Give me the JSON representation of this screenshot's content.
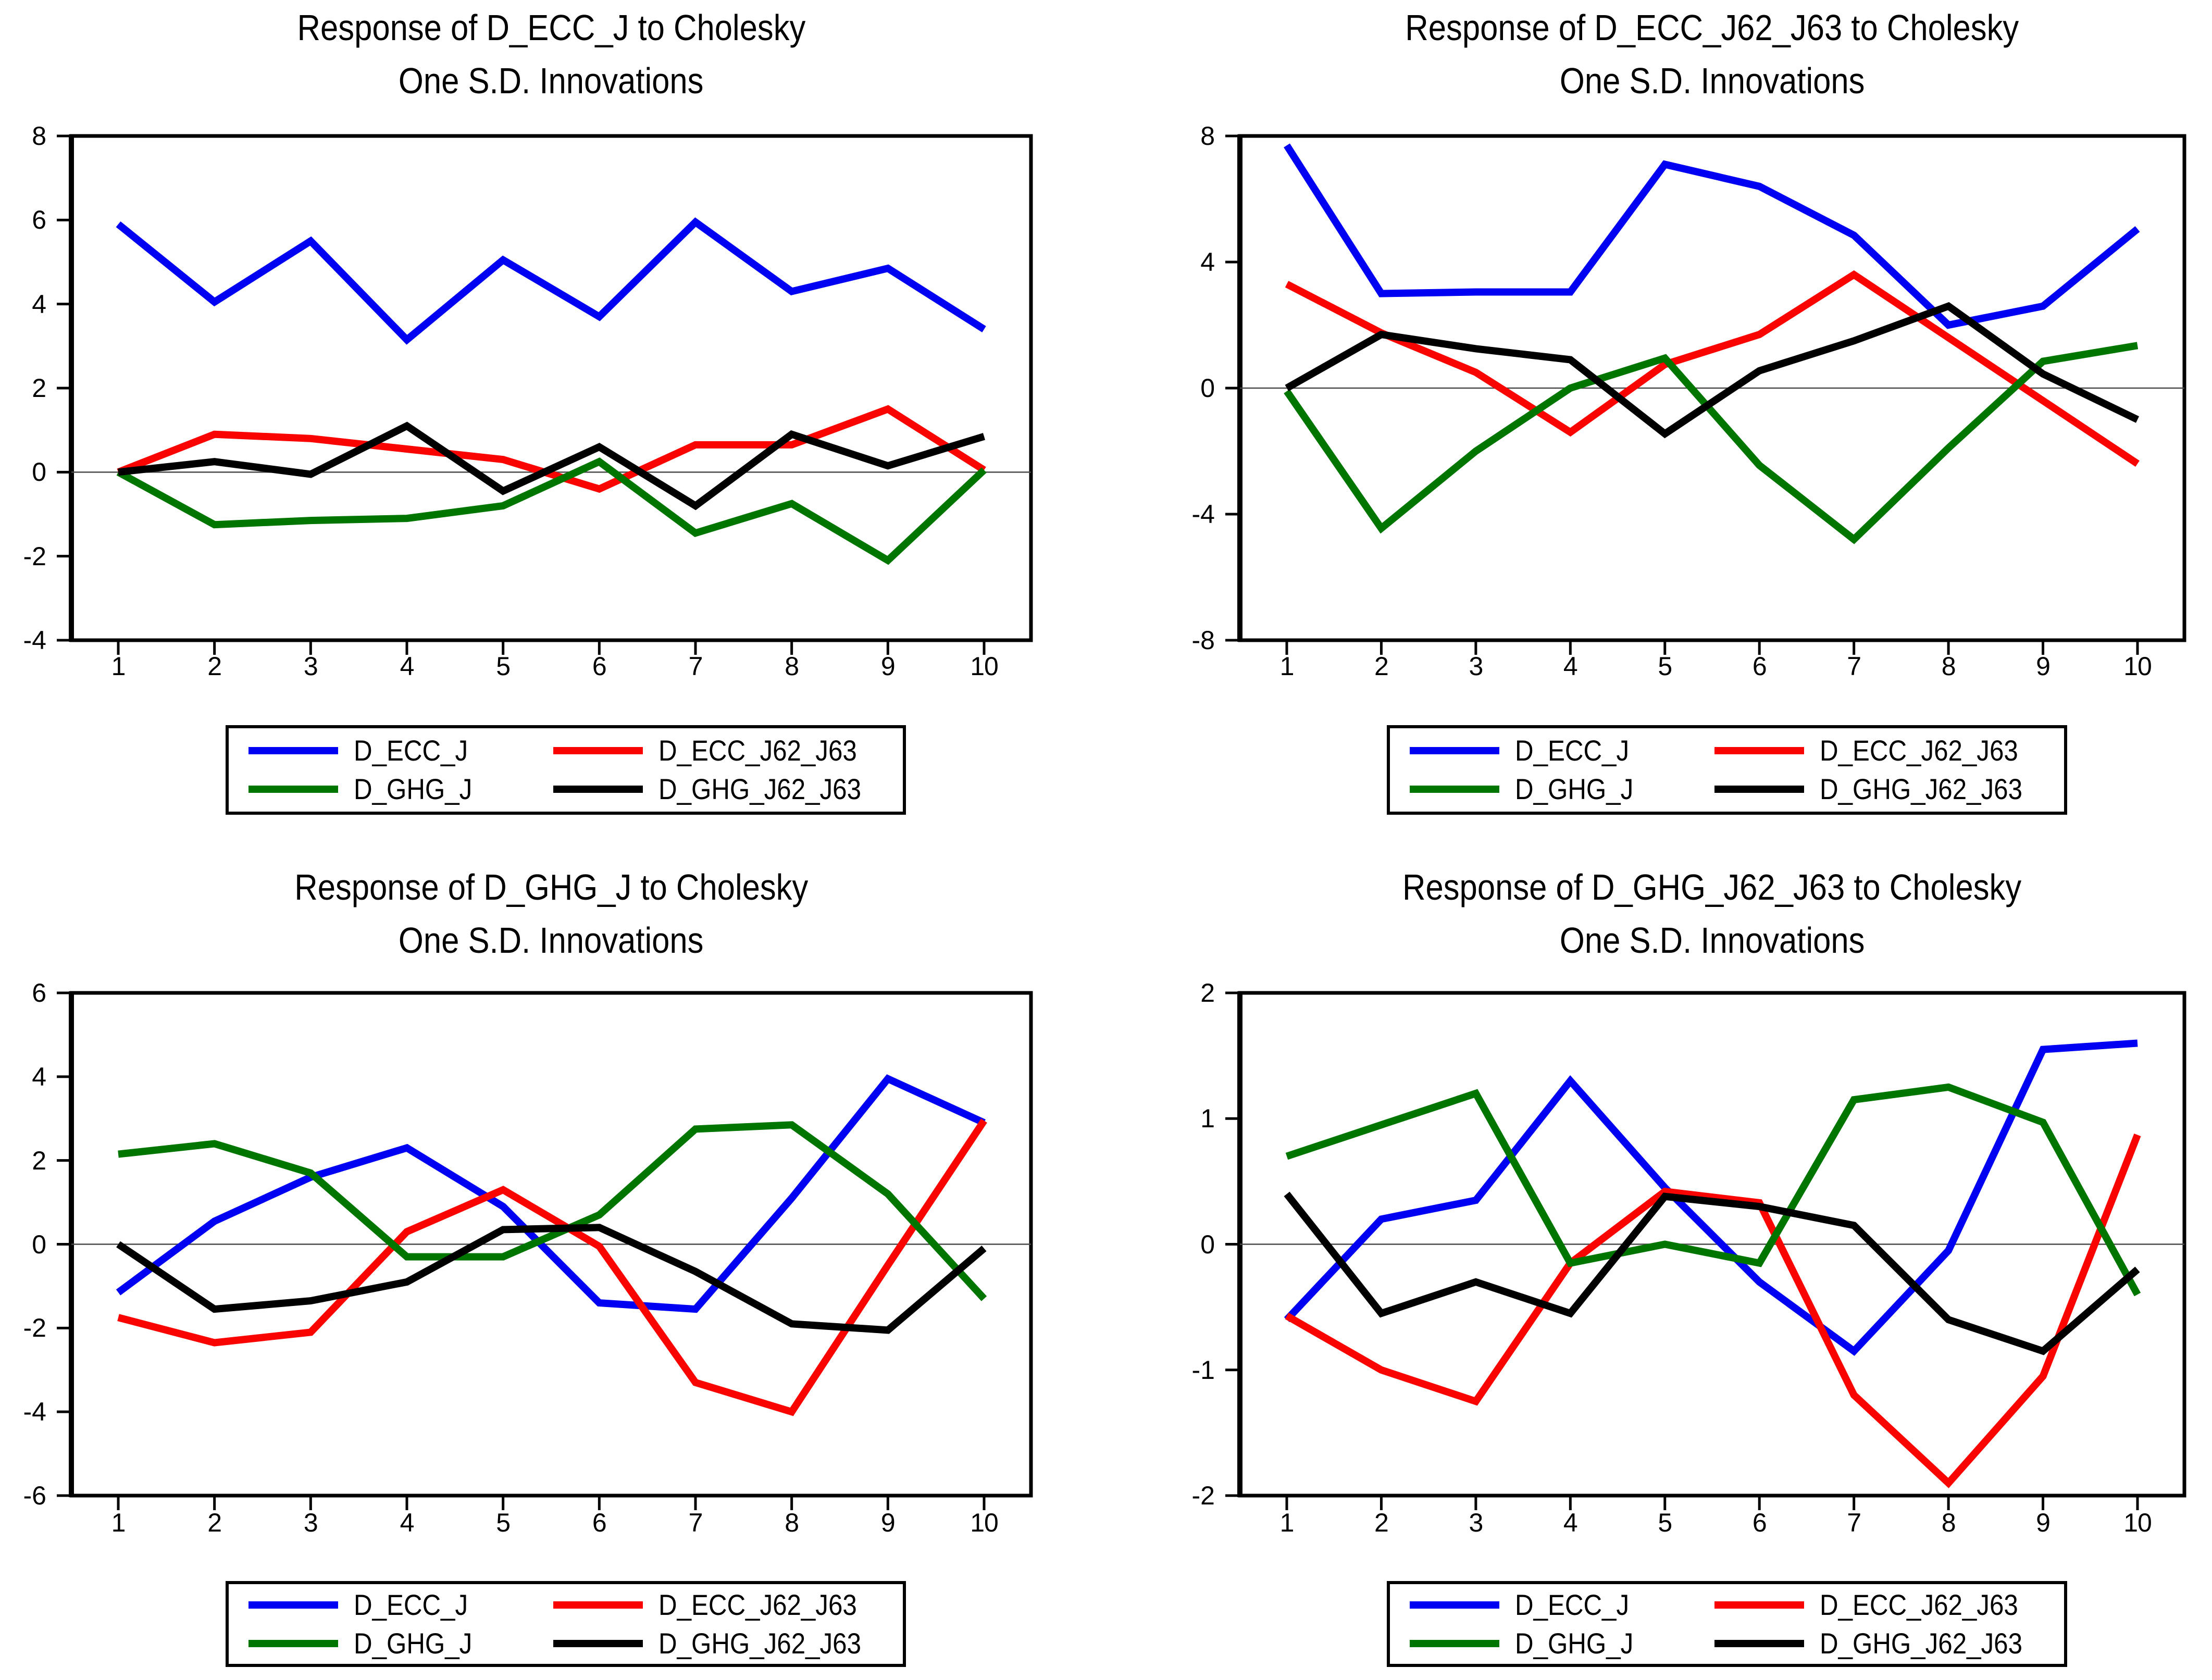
{
  "figure": {
    "background": "#ffffff",
    "subtitle": "One S.D. Innovations",
    "x_tick_labels": [
      "1",
      "2",
      "3",
      "4",
      "5",
      "6",
      "7",
      "8",
      "9",
      "10"
    ]
  },
  "colors": {
    "D_ECC_J": "#0000f2",
    "D_ECC_J62_J63": "#f90400",
    "D_GHG_J": "#007600",
    "D_GHG_J62_J63": "#000000"
  },
  "legend": {
    "items": [
      "D_ECC_J",
      "D_ECC_J62_J63",
      "D_GHG_J",
      "D_GHG_J62_J63"
    ]
  },
  "chart_data": [
    {
      "id": "response-d_ecc_j",
      "type": "line",
      "title": "Response of D_ECC_J to Cholesky",
      "subtitle": "One S.D. Innovations",
      "x": [
        1,
        2,
        3,
        4,
        5,
        6,
        7,
        8,
        9,
        10
      ],
      "ylim": [
        -4,
        8
      ],
      "yticks": [
        8,
        6,
        4,
        2,
        0,
        -2,
        -4
      ],
      "grid": "zero-line-only",
      "series": [
        {
          "name": "D_ECC_J",
          "values": [
            5.9,
            4.05,
            5.5,
            3.15,
            5.05,
            3.7,
            5.95,
            4.3,
            4.85,
            3.4
          ]
        },
        {
          "name": "D_ECC_J62_J63",
          "values": [
            0.0,
            0.9,
            0.8,
            0.55,
            0.3,
            -0.4,
            0.65,
            0.65,
            1.5,
            0.05
          ]
        },
        {
          "name": "D_GHG_J",
          "values": [
            0.0,
            -1.25,
            -1.15,
            -1.1,
            -0.8,
            0.25,
            -1.45,
            -0.75,
            -2.1,
            0.05
          ]
        },
        {
          "name": "D_GHG_J62_J63",
          "values": [
            0.0,
            0.25,
            -0.05,
            1.1,
            -0.45,
            0.6,
            -0.8,
            0.9,
            0.15,
            0.85
          ]
        }
      ]
    },
    {
      "id": "response-d_ecc_j62_j63",
      "type": "line",
      "title": "Response of D_ECC_J62_J63 to Cholesky",
      "subtitle": "One S.D. Innovations",
      "x": [
        1,
        2,
        3,
        4,
        5,
        6,
        7,
        8,
        9,
        10
      ],
      "ylim": [
        -8,
        8
      ],
      "yticks": [
        8,
        4,
        0,
        -4,
        -8
      ],
      "grid": "zero-line-only",
      "series": [
        {
          "name": "D_ECC_J",
          "values": [
            7.7,
            3.0,
            3.05,
            3.05,
            7.1,
            6.4,
            4.85,
            2.0,
            2.6,
            5.05
          ]
        },
        {
          "name": "D_ECC_J62_J63",
          "values": [
            3.3,
            1.75,
            0.5,
            -1.4,
            0.75,
            1.7,
            3.6,
            1.6,
            -0.4,
            -2.4
          ]
        },
        {
          "name": "D_GHG_J",
          "values": [
            -0.1,
            -4.45,
            -2.0,
            0.0,
            0.95,
            -2.45,
            -4.8,
            -1.9,
            0.85,
            1.35
          ]
        },
        {
          "name": "D_GHG_J62_J63",
          "values": [
            0.0,
            1.7,
            1.25,
            0.9,
            -1.45,
            0.55,
            1.5,
            2.6,
            0.45,
            -1.0
          ]
        }
      ]
    },
    {
      "id": "response-d_ghg_j",
      "type": "line",
      "title": "Response of D_GHG_J to Cholesky",
      "subtitle": "One S.D. Innovations",
      "x": [
        1,
        2,
        3,
        4,
        5,
        6,
        7,
        8,
        9,
        10
      ],
      "ylim": [
        -6,
        6
      ],
      "yticks": [
        6,
        4,
        2,
        0,
        -2,
        -4,
        -6
      ],
      "grid": "zero-line-only",
      "series": [
        {
          "name": "D_ECC_J",
          "values": [
            -1.15,
            0.55,
            1.6,
            2.3,
            0.9,
            -1.4,
            -1.55,
            1.1,
            3.95,
            2.9
          ]
        },
        {
          "name": "D_ECC_J62_J63",
          "values": [
            -1.75,
            -2.35,
            -2.1,
            0.3,
            1.3,
            -0.05,
            -3.3,
            -4.0,
            -0.5,
            2.95
          ]
        },
        {
          "name": "D_GHG_J",
          "values": [
            2.15,
            2.4,
            1.7,
            -0.3,
            -0.3,
            0.7,
            2.75,
            2.85,
            1.2,
            -1.3
          ]
        },
        {
          "name": "D_GHG_J62_J63",
          "values": [
            0.0,
            -1.55,
            -1.35,
            -0.9,
            0.35,
            0.4,
            -0.65,
            -1.9,
            -2.05,
            -0.1
          ]
        }
      ]
    },
    {
      "id": "response-d_ghg_j62_j63",
      "type": "line",
      "title": "Response of D_GHG_J62_J63 to Cholesky",
      "subtitle": "One S.D. Innovations",
      "x": [
        1,
        2,
        3,
        4,
        5,
        6,
        7,
        8,
        9,
        10
      ],
      "ylim": [
        -2,
        2
      ],
      "yticks": [
        2,
        1,
        0,
        -1,
        -2
      ],
      "grid": "zero-line-only",
      "series": [
        {
          "name": "D_ECC_J",
          "values": [
            -0.6,
            0.2,
            0.35,
            1.3,
            0.45,
            -0.3,
            -0.85,
            -0.05,
            1.55,
            1.6
          ]
        },
        {
          "name": "D_ECC_J62_J63",
          "values": [
            -0.57,
            -1.0,
            -1.25,
            -0.15,
            0.42,
            0.33,
            -1.2,
            -1.9,
            -1.05,
            0.87
          ]
        },
        {
          "name": "D_GHG_J",
          "values": [
            0.7,
            0.95,
            1.2,
            -0.15,
            0.0,
            -0.15,
            1.15,
            1.25,
            0.97,
            -0.4
          ]
        },
        {
          "name": "D_GHG_J62_J63",
          "values": [
            0.4,
            -0.55,
            -0.3,
            -0.55,
            0.38,
            0.3,
            0.15,
            -0.6,
            -0.85,
            -0.2
          ]
        }
      ]
    }
  ]
}
